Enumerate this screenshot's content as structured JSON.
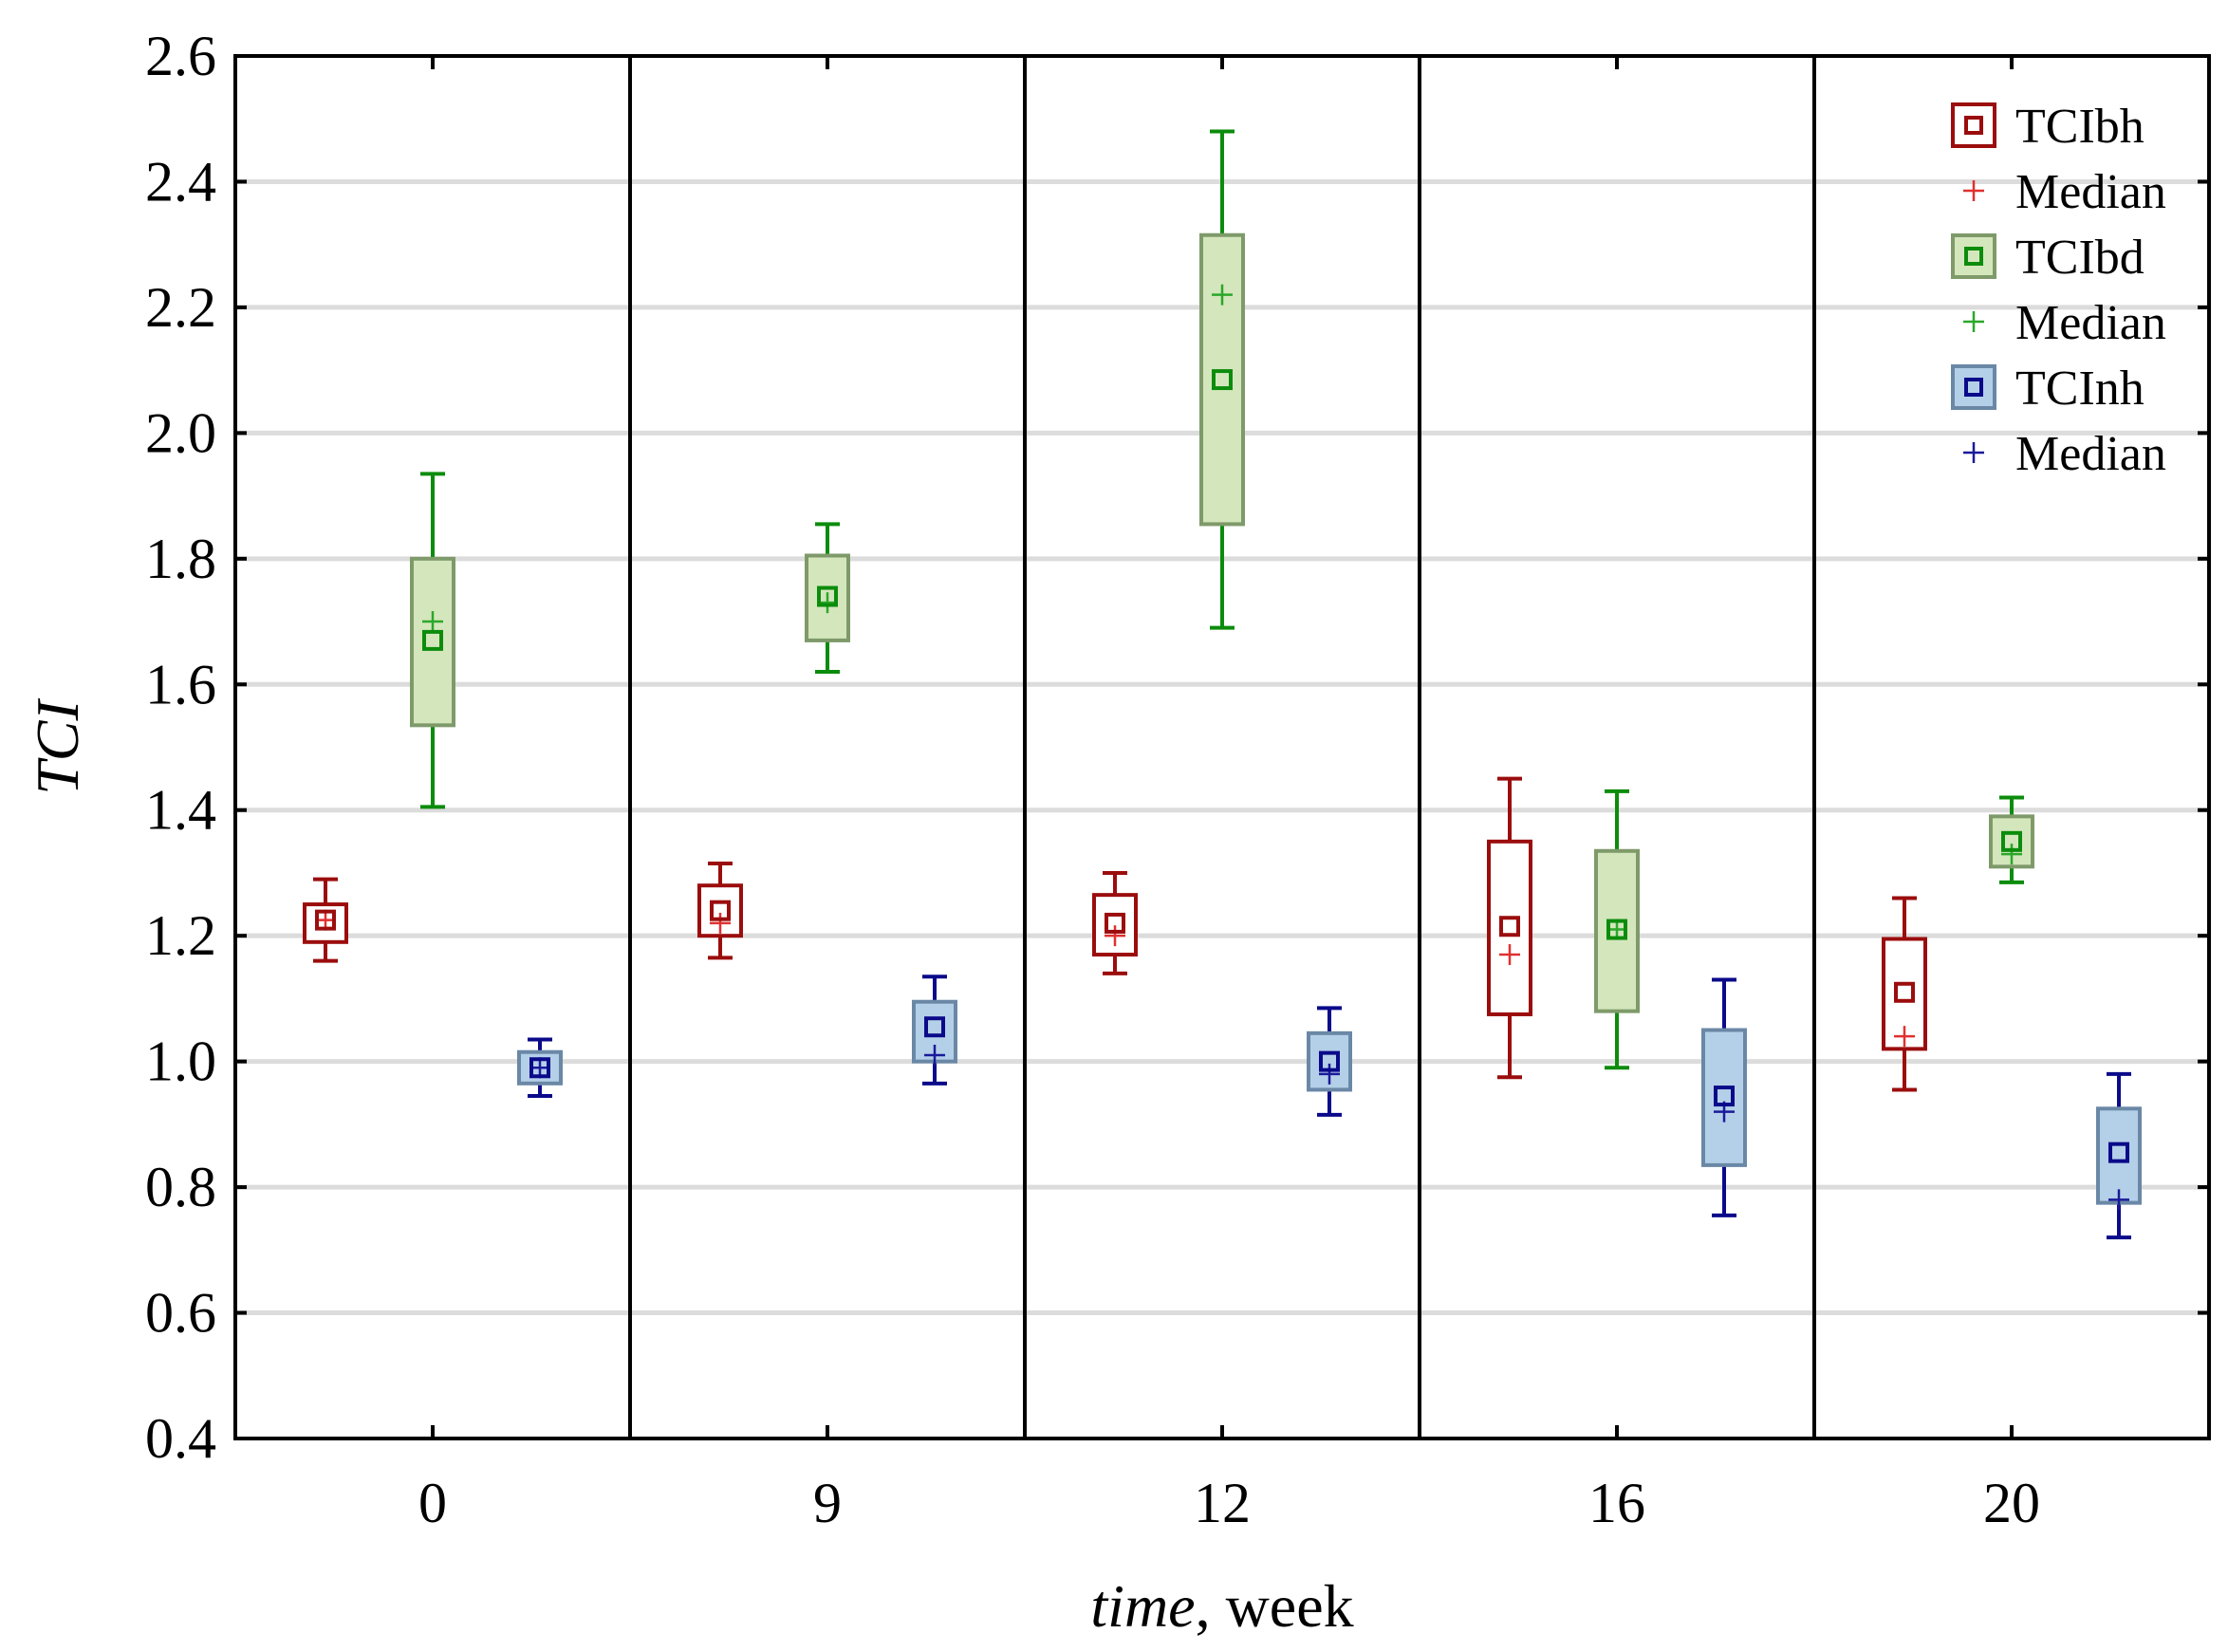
{
  "chart_data": {
    "type": "box",
    "title": "",
    "xlabel": {
      "italic": "time",
      "rest": ", week"
    },
    "ylabel": "TCI",
    "ylim": [
      0.4,
      2.6
    ],
    "yticks": [
      "0.4",
      "0.6",
      "0.8",
      "1.0",
      "1.2",
      "1.4",
      "1.6",
      "1.8",
      "2.0",
      "2.2",
      "2.4",
      "2.6"
    ],
    "categories": [
      "0",
      "9",
      "12",
      "16",
      "20"
    ],
    "grid": true,
    "legend_position": "top-right",
    "median_label": "Median",
    "series": [
      {
        "name": "TCIbh",
        "color": "#9b0d0d",
        "fill": "#ffffff",
        "frame": "#9b0d0d",
        "median_color": "#e03030",
        "mean": [
          1.225,
          1.24,
          1.22,
          1.215,
          1.11
        ],
        "median": [
          1.225,
          1.22,
          1.2,
          1.17,
          1.04
        ],
        "q1": [
          1.19,
          1.2,
          1.17,
          1.075,
          1.02
        ],
        "q3": [
          1.25,
          1.28,
          1.265,
          1.35,
          1.195
        ],
        "min": [
          1.16,
          1.165,
          1.14,
          0.975,
          0.955
        ],
        "max": [
          1.29,
          1.315,
          1.3,
          1.45,
          1.26
        ]
      },
      {
        "name": "TCIbd",
        "color": "#0c8c0c",
        "fill": "#d4e6bc",
        "frame": "#7f9a6a",
        "median_color": "#2aa82a",
        "mean": [
          1.67,
          1.74,
          2.085,
          1.21,
          1.35
        ],
        "median": [
          1.7,
          1.73,
          2.22,
          1.21,
          1.33
        ],
        "q1": [
          1.535,
          1.67,
          1.855,
          1.08,
          1.31
        ],
        "q3": [
          1.8,
          1.805,
          2.315,
          1.335,
          1.39
        ],
        "min": [
          1.405,
          1.62,
          1.69,
          0.99,
          1.285
        ],
        "max": [
          1.935,
          1.855,
          2.48,
          1.43,
          1.42
        ]
      },
      {
        "name": "TCInh",
        "color": "#0a0a8a",
        "fill": "#b4cfe8",
        "frame": "#6a88a6",
        "median_color": "#1a1a9a",
        "mean": [
          0.99,
          1.055,
          1.0,
          0.945,
          0.855
        ],
        "median": [
          0.99,
          1.01,
          0.98,
          0.92,
          0.78
        ],
        "q1": [
          0.965,
          1.0,
          0.955,
          0.835,
          0.775
        ],
        "q3": [
          1.015,
          1.095,
          1.045,
          1.05,
          0.925
        ],
        "min": [
          0.945,
          0.965,
          0.915,
          0.755,
          0.72
        ],
        "max": [
          1.035,
          1.135,
          1.085,
          1.13,
          0.98
        ]
      }
    ]
  }
}
